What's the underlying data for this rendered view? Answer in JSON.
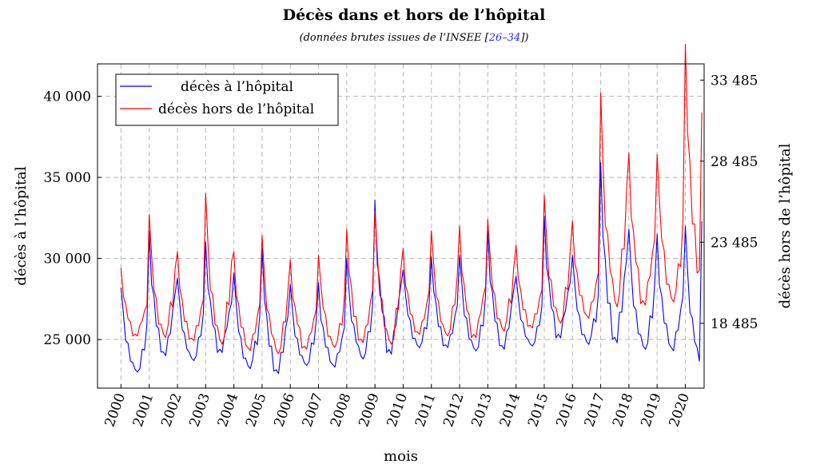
{
  "chart_data": {
    "type": "line",
    "title": "Décès dans et hors de l’hôpital",
    "subtitle": {
      "prefix": "(données brutes issues de l’INSEE [",
      "ref": "26–34",
      "suffix": "])"
    },
    "xlabel": "mois",
    "ylabel_left": "décès à l’hôpital",
    "ylabel_right": "décès hors de l’hôpital",
    "x_ticks": [
      "2000",
      "2001",
      "2002",
      "2003",
      "2004",
      "2005",
      "2006",
      "2007",
      "2008",
      "2009",
      "2010",
      "2011",
      "2012",
      "2013",
      "2014",
      "2015",
      "2016",
      "2017",
      "2018",
      "2019",
      "2020"
    ],
    "x_start": "2000-01",
    "x_end": "2020-08",
    "xlim": [
      "1999-03",
      "2020-09"
    ],
    "ylim_left": [
      22000,
      42000
    ],
    "ylim_right": [
      14485,
      34485
    ],
    "left_ticks": [
      {
        "value": 25000,
        "label": "25 000"
      },
      {
        "value": 30000,
        "label": "30 000"
      },
      {
        "value": 35000,
        "label": "35 000"
      },
      {
        "value": 40000,
        "label": "40 000"
      }
    ],
    "right_ticks": [
      {
        "value": 18485,
        "label": "18 485"
      },
      {
        "value": 23485,
        "label": "23 485"
      },
      {
        "value": 28485,
        "label": "28 485"
      },
      {
        "value": 33485,
        "label": "33 485"
      }
    ],
    "grid": true,
    "legend_position": "top-left",
    "series": [
      {
        "name": "décès à l’hôpital",
        "color": "#0000ff",
        "axis": "left",
        "annual_peaks": [
          28200,
          31700,
          28800,
          31000,
          29100,
          30600,
          28400,
          28500,
          30000,
          33600,
          29300,
          30100,
          30200,
          31700,
          28900,
          32600,
          30200,
          35900,
          31800,
          31500,
          32000
        ],
        "annual_troughs": [
          23000,
          24000,
          23700,
          24200,
          23200,
          22900,
          23400,
          23300,
          23800,
          24100,
          24500,
          24500,
          24300,
          24400,
          24600,
          25100,
          24700,
          24800,
          24400,
          24300,
          23400
        ],
        "last_month_value": 32300
      },
      {
        "name": "décès hors de l’hôpital",
        "color": "#ff0000",
        "axis": "right",
        "annual_peaks": [
          21900,
          25200,
          22900,
          26500,
          22900,
          23900,
          22400,
          22700,
          24300,
          25400,
          23100,
          24200,
          24500,
          24900,
          23300,
          26400,
          24800,
          32700,
          29000,
          28900,
          35700
        ],
        "annual_troughs": [
          17700,
          17600,
          17400,
          17200,
          16800,
          16600,
          16900,
          17000,
          17300,
          17200,
          17800,
          17700,
          17600,
          18000,
          18200,
          18500,
          18800,
          19500,
          19600,
          19800,
          21300
        ],
        "last_month_value": 31500
      }
    ]
  }
}
